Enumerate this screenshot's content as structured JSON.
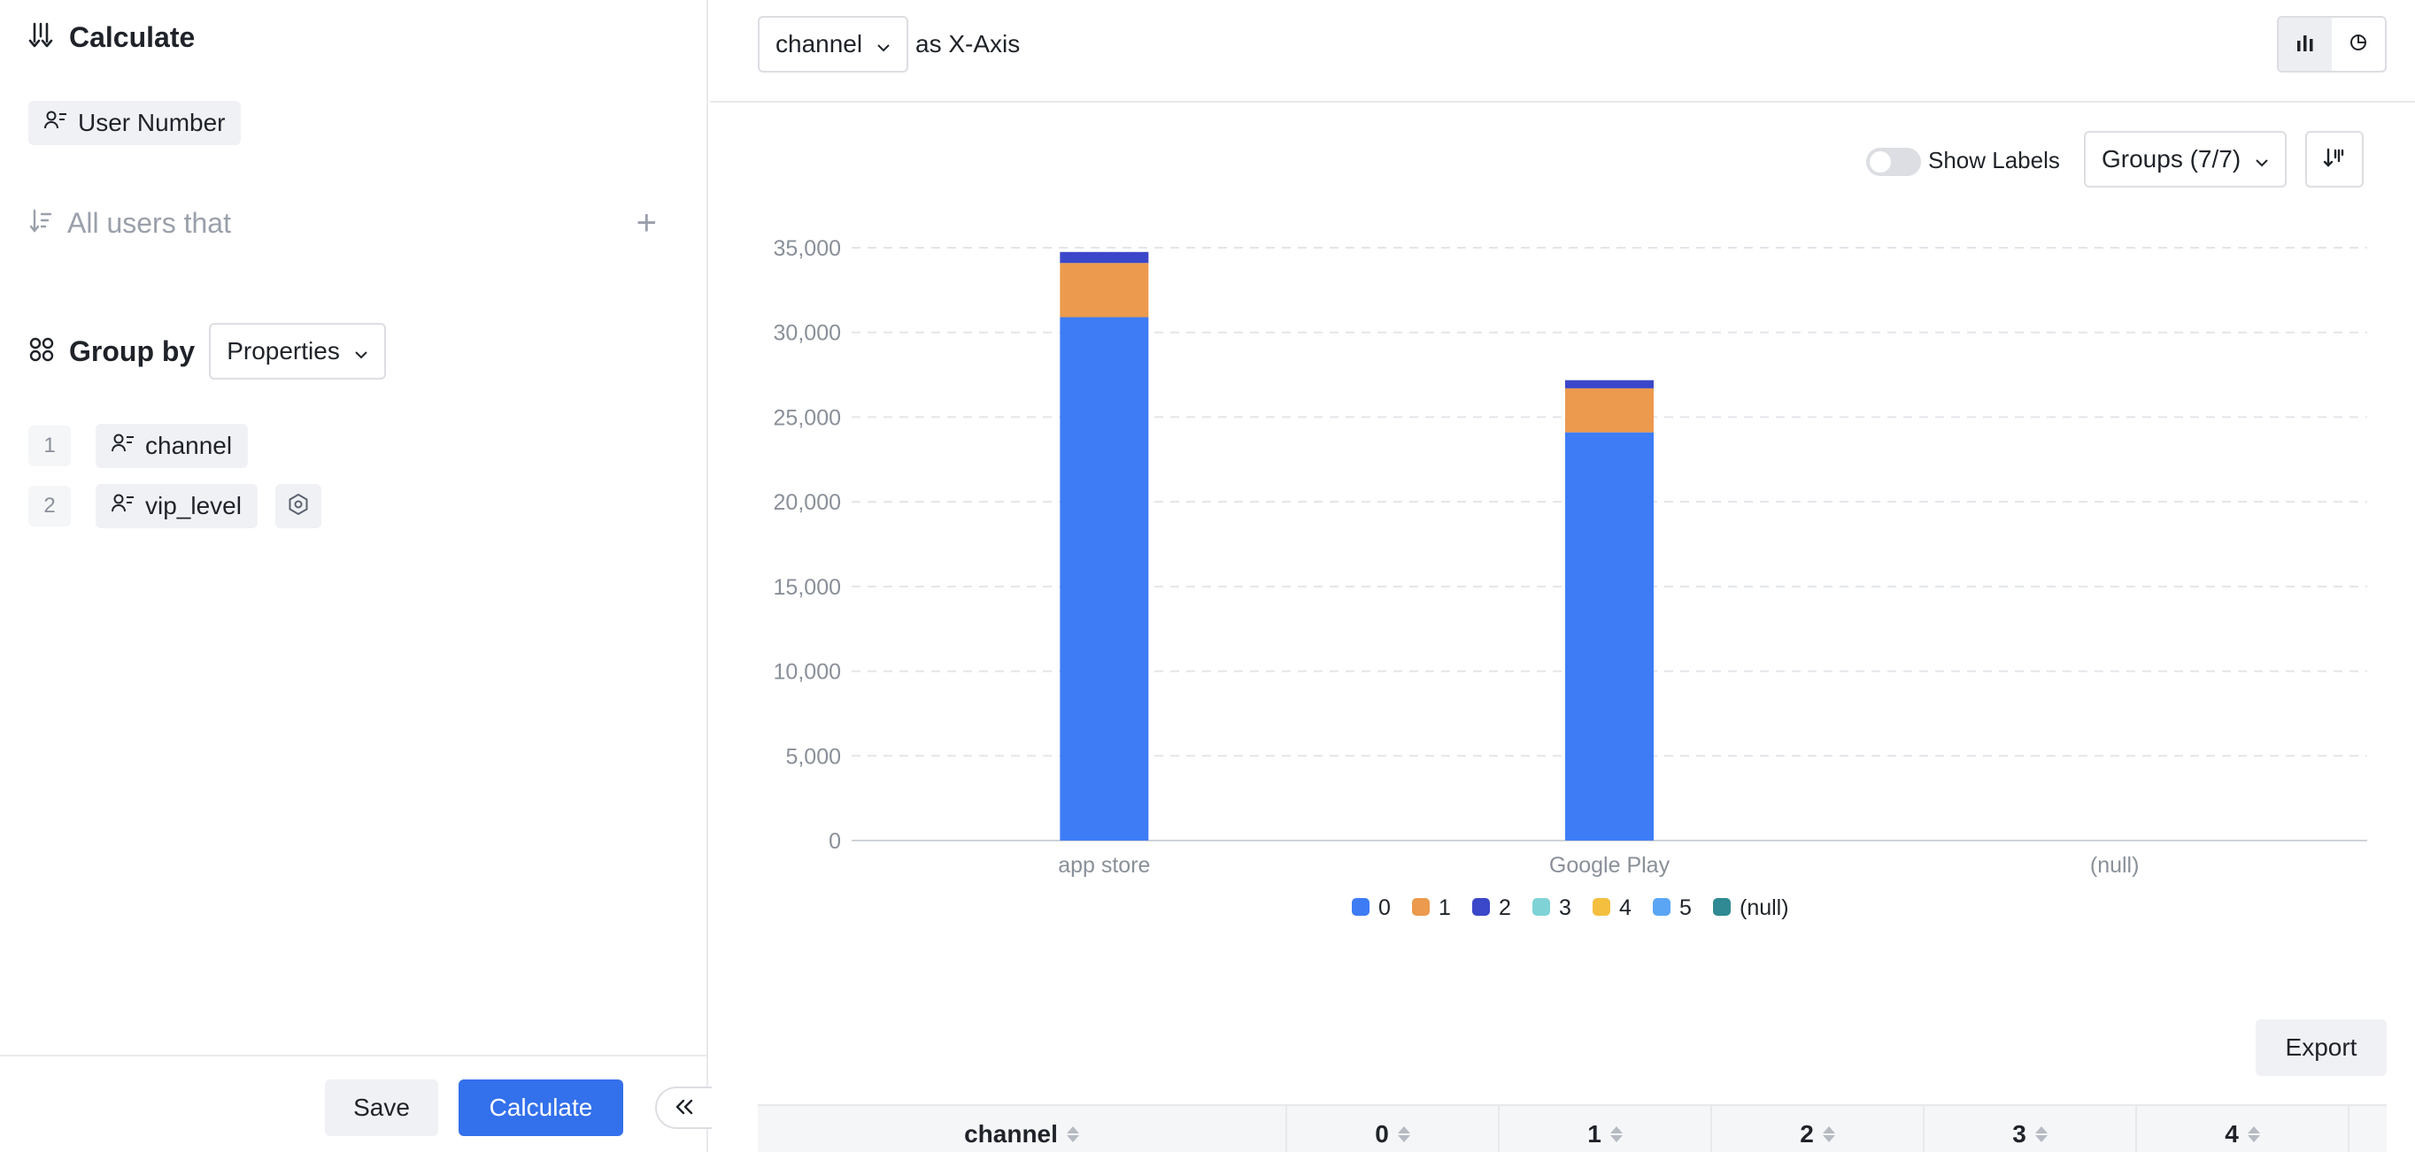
{
  "left": {
    "calculate_title": "Calculate",
    "metric_chip": "User Number",
    "filter_label": "All users that",
    "group_by_title": "Group by",
    "group_by_mode": "Properties",
    "groups": [
      {
        "index": "1",
        "name": "channel"
      },
      {
        "index": "2",
        "name": "vip_level"
      }
    ],
    "save_label": "Save",
    "calculate_label": "Calculate"
  },
  "top": {
    "xaxis_value": "channel",
    "xaxis_suffix": "as X-Axis"
  },
  "controls": {
    "show_labels": "Show Labels",
    "show_labels_on": false,
    "groups_label": "Groups (7/7)"
  },
  "export_label": "Export",
  "table": {
    "headers": [
      "channel",
      "0",
      "1",
      "2",
      "3",
      "4"
    ]
  },
  "chart_data": {
    "type": "bar",
    "stacked": true,
    "categories": [
      "app store",
      "Google Play",
      "(null)"
    ],
    "y_ticks": [
      "0",
      "5,000",
      "10,000",
      "15,000",
      "20,000",
      "25,000",
      "30,000",
      "35,000"
    ],
    "ylim": [
      0,
      35000
    ],
    "grid": true,
    "legend_position": "bottom",
    "series": [
      {
        "name": "0",
        "color": "#3d7cf5",
        "values": [
          30900,
          24100,
          0
        ]
      },
      {
        "name": "1",
        "color": "#ec9a4d",
        "values": [
          3200,
          2600,
          0
        ]
      },
      {
        "name": "2",
        "color": "#3b47c9",
        "values": [
          650,
          480,
          0
        ]
      },
      {
        "name": "3",
        "color": "#7fd3d6",
        "values": [
          0,
          0,
          0
        ]
      },
      {
        "name": "4",
        "color": "#f4bf3f",
        "values": [
          0,
          0,
          0
        ]
      },
      {
        "name": "5",
        "color": "#5aa6f5",
        "values": [
          0,
          0,
          0
        ]
      },
      {
        "name": "(null)",
        "color": "#2f8a93",
        "values": [
          0,
          0,
          0
        ]
      }
    ]
  }
}
